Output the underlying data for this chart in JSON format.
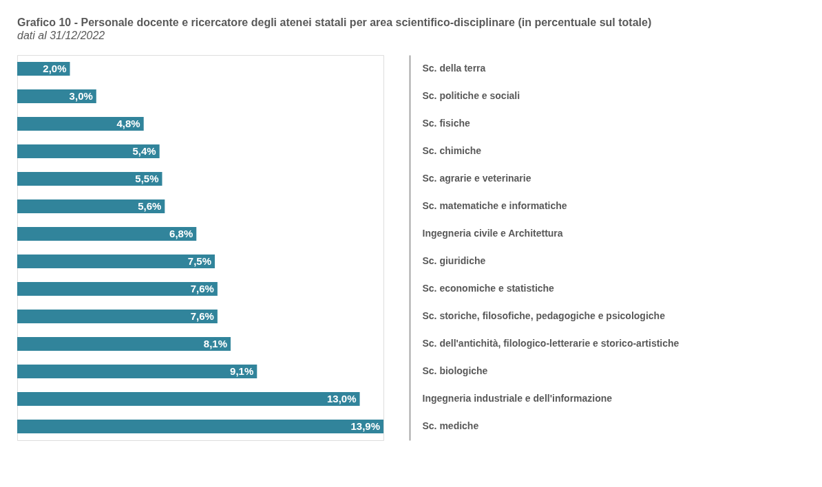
{
  "chart_data": {
    "type": "bar",
    "orientation": "horizontal",
    "title": "Grafico 10 - Personale docente e ricercatore degli atenei statali per area scientifico-disciplinare (in percentuale sul totale)",
    "subtitle": "dati al 31/12/2022",
    "categories": [
      "Sc. della terra",
      "Sc. politiche e sociali",
      "Sc. fisiche",
      "Sc. chimiche",
      "Sc. agrarie e veterinarie",
      "Sc. matematiche e informatiche",
      "Ingegneria civile e Architettura",
      "Sc. giuridiche",
      "Sc. economiche e statistiche",
      "Sc. storiche, filosofiche, pedagogiche e psicologiche",
      "Sc. dell'antichità, filologico-letterarie e storico-artistiche",
      "Sc. biologiche",
      "Ingegneria industriale e dell'informazione",
      "Sc. mediche"
    ],
    "values": [
      2.0,
      3.0,
      4.8,
      5.4,
      5.5,
      5.6,
      6.8,
      7.5,
      7.6,
      7.6,
      8.1,
      9.1,
      13.0,
      13.9
    ],
    "value_labels": [
      "2,0%",
      "3,0%",
      "4,8%",
      "5,4%",
      "5,5%",
      "5,6%",
      "6,8%",
      "7,5%",
      "7,6%",
      "7,6%",
      "8,1%",
      "9,1%",
      "13,0%",
      "13,9%"
    ],
    "color": "#31849b"
  }
}
